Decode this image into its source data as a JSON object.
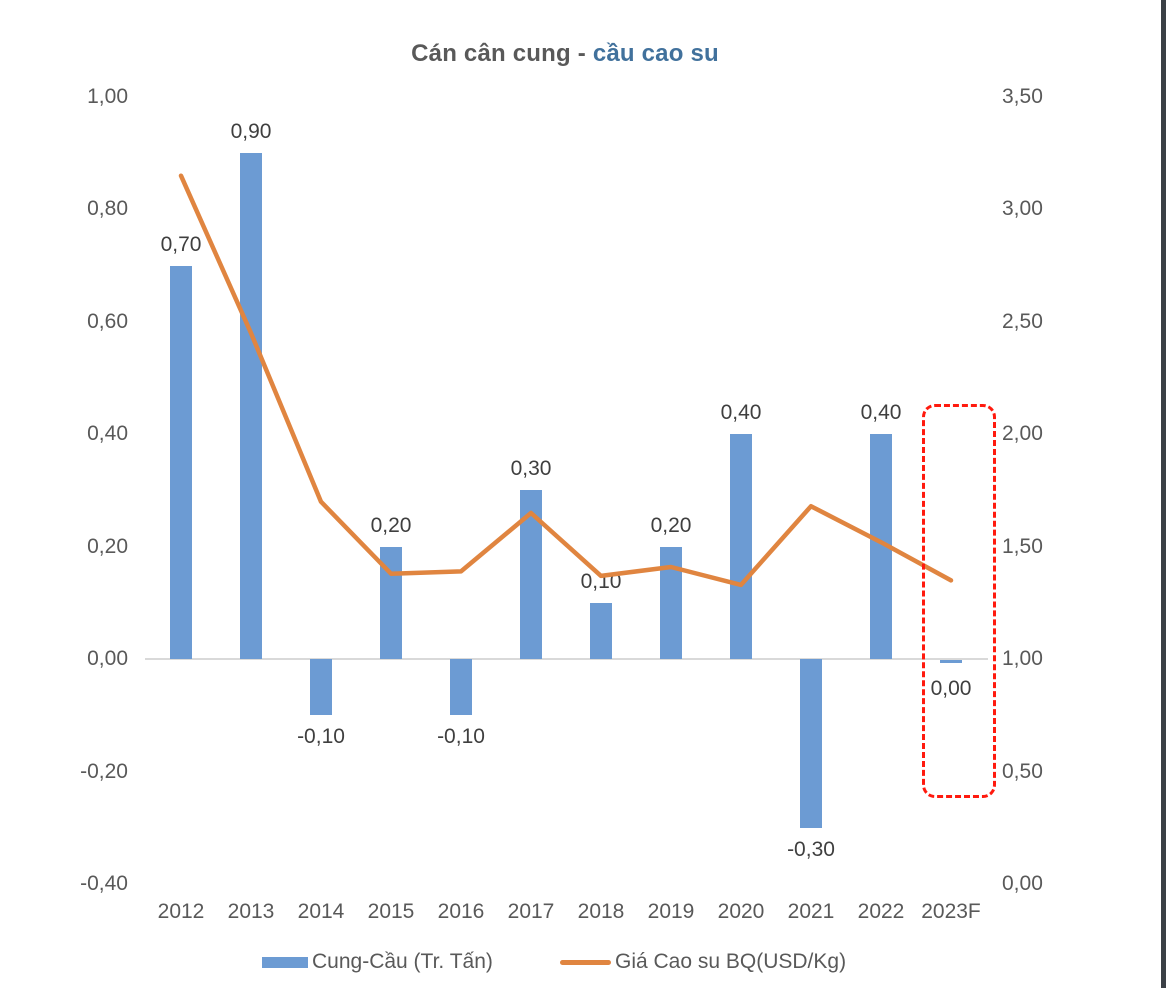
{
  "title": {
    "part1": "Cán cân cung - ",
    "part2": "cầu cao su"
  },
  "colors": {
    "bar": "#6C9BD3",
    "line": "#E08540",
    "highlight_box": "#FF1A0E",
    "axis_text": "#595959",
    "data_label": "#3F3F3F",
    "title_gray": "#595959",
    "title_blue": "#41719C",
    "zero_line": "#D9D9D9",
    "edge_strip": "#3B4046"
  },
  "chart_data": {
    "type": "bar+line combo",
    "title": "Cán cân cung - cầu cao su",
    "categories": [
      "2012",
      "2013",
      "2014",
      "2015",
      "2016",
      "2017",
      "2018",
      "2019",
      "2020",
      "2021",
      "2022",
      "2023F"
    ],
    "series": [
      {
        "name": "Cung-Cầu (Tr. Tấn)",
        "type": "bar",
        "axis": "left",
        "values": [
          0.7,
          0.9,
          -0.1,
          0.2,
          -0.1,
          0.3,
          0.1,
          0.2,
          0.4,
          -0.3,
          0.4,
          0.0
        ],
        "labels": [
          "0,70",
          "0,90",
          "-0,10",
          "0,20",
          "-0,10",
          "0,30",
          "0,10",
          "0,20",
          "0,40",
          "-0,30",
          "0,40",
          "0,00"
        ]
      },
      {
        "name": "Giá Cao su BQ(USD/Kg)",
        "type": "line",
        "axis": "right",
        "values": [
          3.15,
          2.45,
          1.7,
          1.38,
          1.39,
          1.65,
          1.37,
          1.41,
          1.33,
          1.68,
          1.52,
          1.35
        ]
      }
    ],
    "left_axis": {
      "min": -0.4,
      "max": 1.0,
      "tick_step": 0.2,
      "ticks": [
        "1,00",
        "0,80",
        "0,60",
        "0,40",
        "0,20",
        "0,00",
        "-0,20",
        "-0,40"
      ]
    },
    "right_axis": {
      "min": 0.0,
      "max": 3.5,
      "tick_step": 0.5,
      "ticks": [
        "3,50",
        "3,00",
        "2,50",
        "2,00",
        "1,50",
        "1,00",
        "0,50",
        "0,00"
      ]
    },
    "grid": "off",
    "legend_position": "bottom",
    "highlight": {
      "category": "2023F",
      "style": "red dashed rounded box"
    }
  },
  "legend": [
    {
      "label": "Cung-Cầu (Tr. Tấn)",
      "swatch": "bar"
    },
    {
      "label": "Giá Cao su BQ(USD/Kg)",
      "swatch": "line"
    }
  ]
}
